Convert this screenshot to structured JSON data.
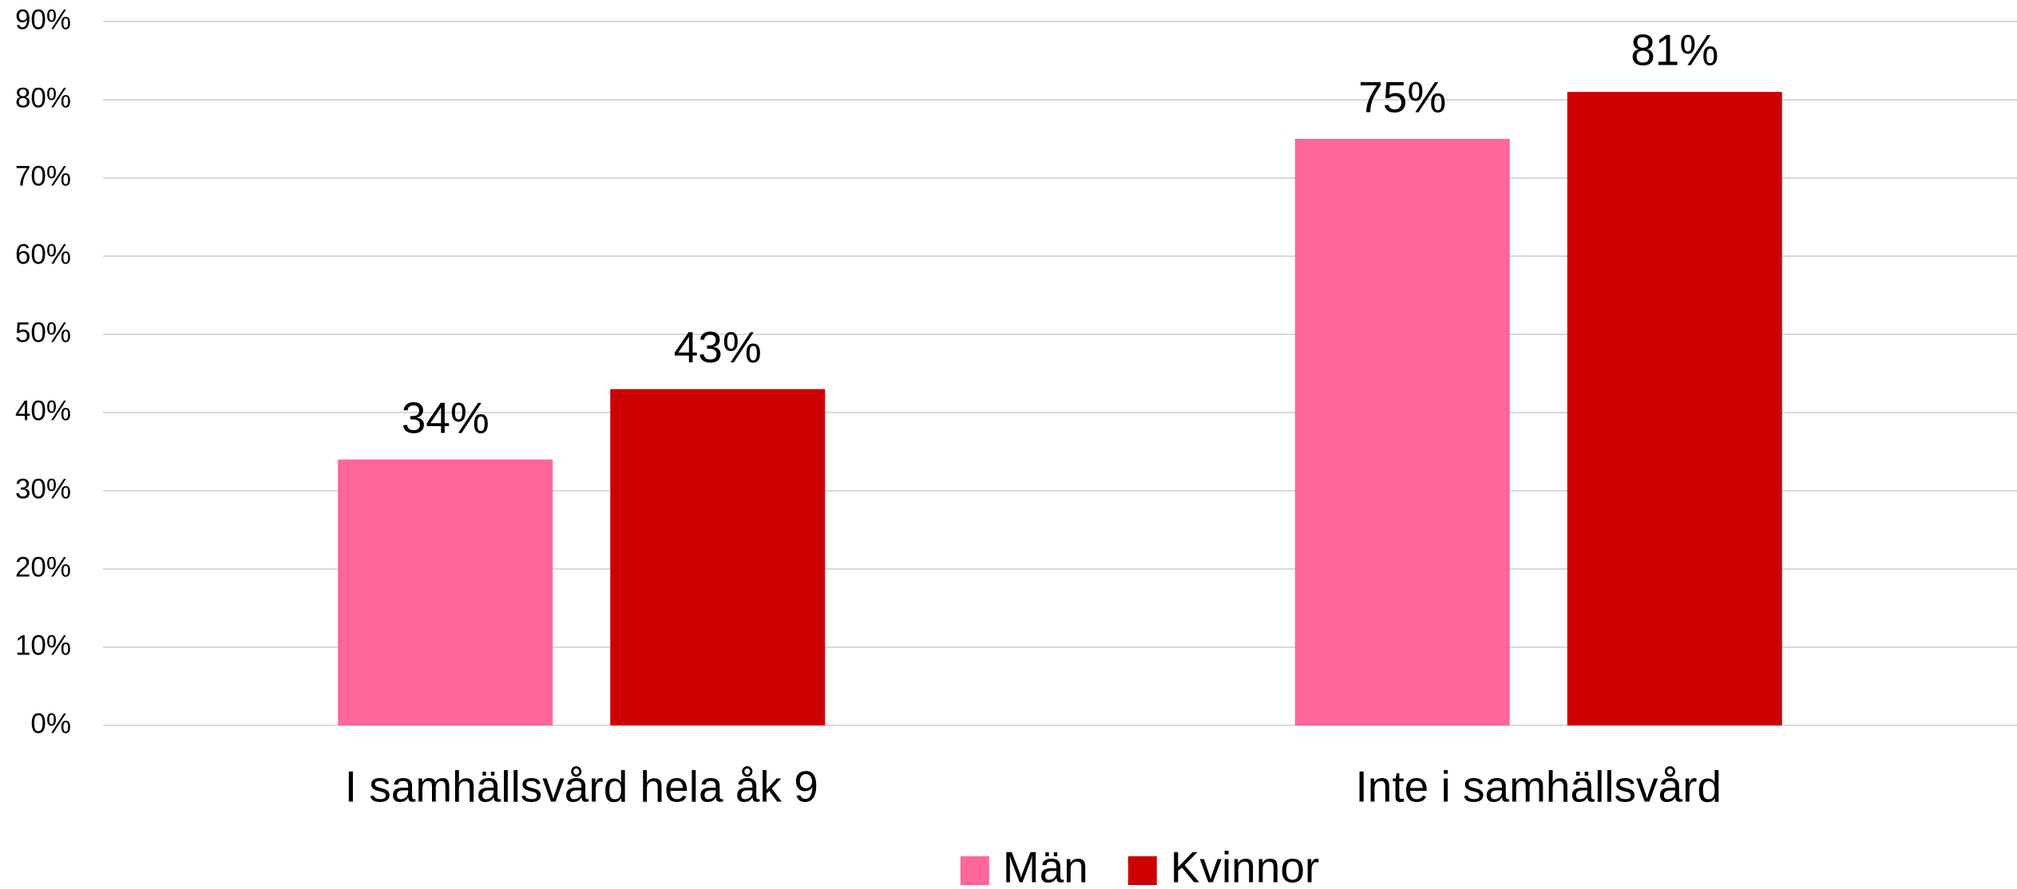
{
  "chart_data": {
    "type": "bar",
    "categories": [
      "I samhällsvård hela åk 9",
      "Inte i samhällsvård"
    ],
    "series": [
      {
        "name": "Män",
        "color": "#ff6699",
        "values": [
          34,
          75
        ],
        "value_labels": [
          "34%",
          "75%"
        ]
      },
      {
        "name": "Kvinnor",
        "color": "#cc0000",
        "values": [
          43,
          81
        ],
        "value_labels": [
          "43%",
          "81%"
        ]
      }
    ],
    "ylim": [
      0,
      90
    ],
    "yticks": [
      {
        "value": 0,
        "label": "0%"
      },
      {
        "value": 10,
        "label": "10%"
      },
      {
        "value": 20,
        "label": "20%"
      },
      {
        "value": 30,
        "label": "30%"
      },
      {
        "value": 40,
        "label": "40%"
      },
      {
        "value": 50,
        "label": "50%"
      },
      {
        "value": 60,
        "label": "60%"
      },
      {
        "value": 70,
        "label": "70%"
      },
      {
        "value": 80,
        "label": "80%"
      },
      {
        "value": 90,
        "label": "90%"
      }
    ],
    "grid": true,
    "legend": "bottom"
  }
}
